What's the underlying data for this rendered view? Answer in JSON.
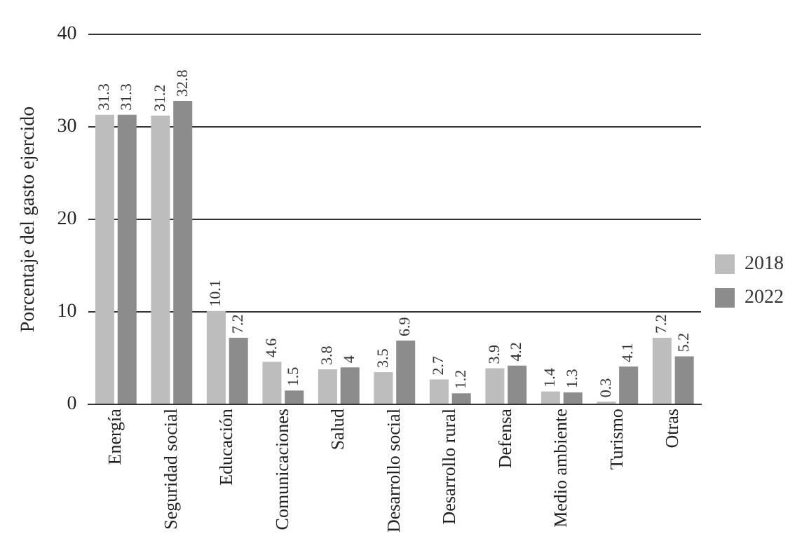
{
  "chart_data": {
    "type": "bar",
    "ylabel": "Porcentaje del gasto ejercido",
    "categories": [
      "Energía",
      "Seguridad social",
      "Educación",
      "Comunicaciones",
      "Salud",
      "Desarrollo social",
      "Desarrollo rural",
      "Defensa",
      "Medio ambiente",
      "Turismo",
      "Otras"
    ],
    "series": [
      {
        "name": "2018",
        "color": "#bdbdbd",
        "values": [
          31.3,
          31.2,
          10.1,
          4.6,
          3.8,
          3.5,
          2.7,
          3.9,
          1.4,
          0.3,
          7.2
        ]
      },
      {
        "name": "2022",
        "color": "#8c8c8c",
        "values": [
          31.3,
          32.8,
          7.2,
          1.5,
          4,
          6.9,
          1.2,
          4.2,
          1.3,
          4.1,
          5.2
        ]
      }
    ],
    "ylim": [
      0,
      40
    ],
    "yticks": [
      0,
      10,
      20,
      30,
      40
    ],
    "grid": "y",
    "legend": "right",
    "data_labels": true
  }
}
